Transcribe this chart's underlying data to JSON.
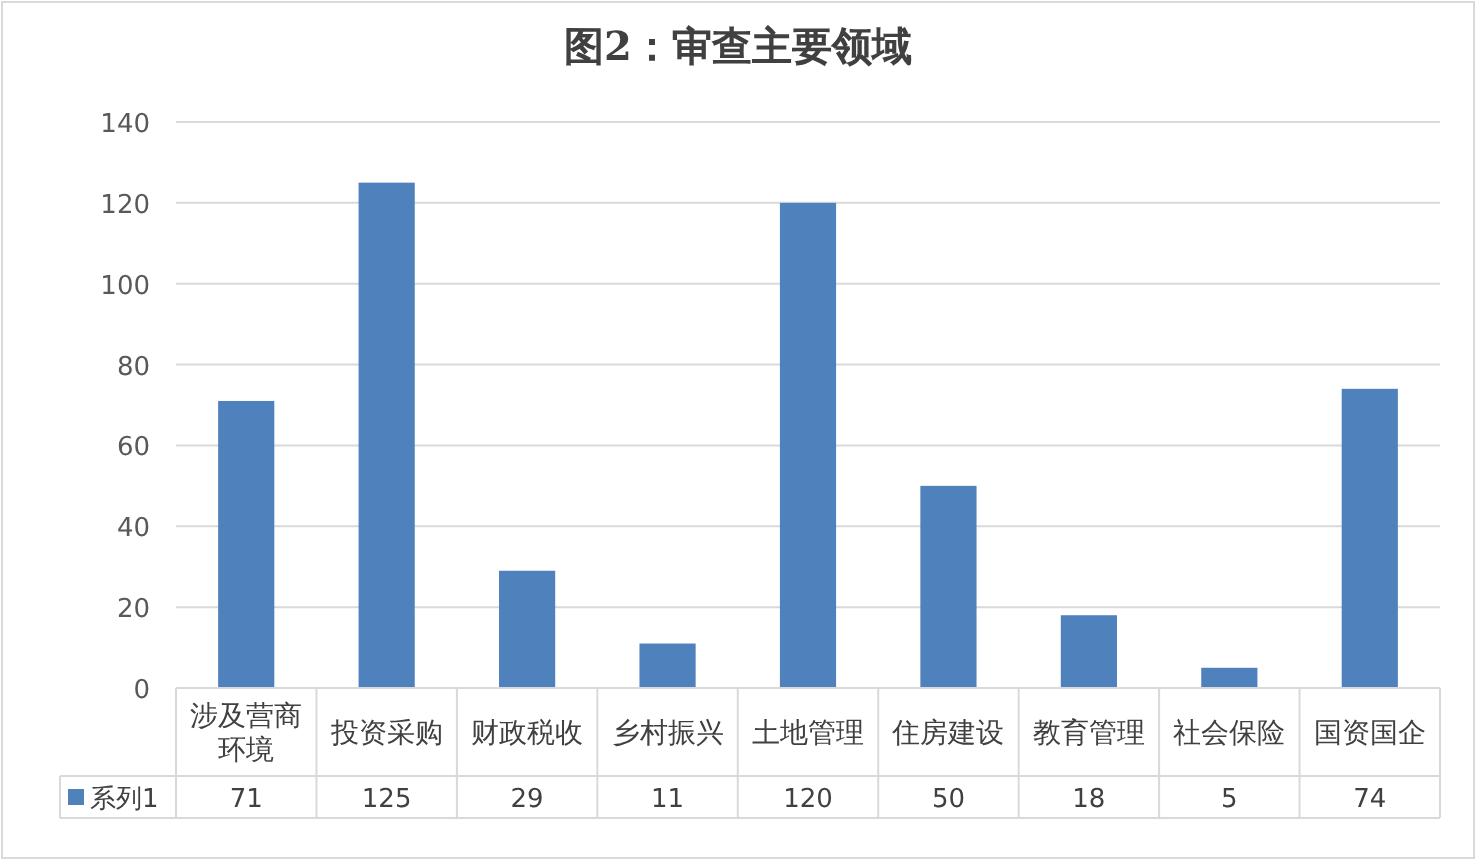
{
  "chart_data": {
    "type": "bar",
    "title": "图2：审查主要领域",
    "categories": [
      "涉及营商环境",
      "投资采购",
      "财政税收",
      "乡村振兴",
      "土地管理",
      "住房建设",
      "教育管理",
      "社会保险",
      "国资国企"
    ],
    "series": [
      {
        "name": "系列1",
        "color": "#4f81bd",
        "values": [
          71,
          125,
          29,
          11,
          120,
          50,
          18,
          5,
          74
        ]
      }
    ],
    "ylim": [
      0,
      140
    ],
    "yticks": [
      0,
      20,
      40,
      60,
      80,
      100,
      120,
      140
    ],
    "grid": "y",
    "legend": "bottom",
    "data_labels": true
  }
}
